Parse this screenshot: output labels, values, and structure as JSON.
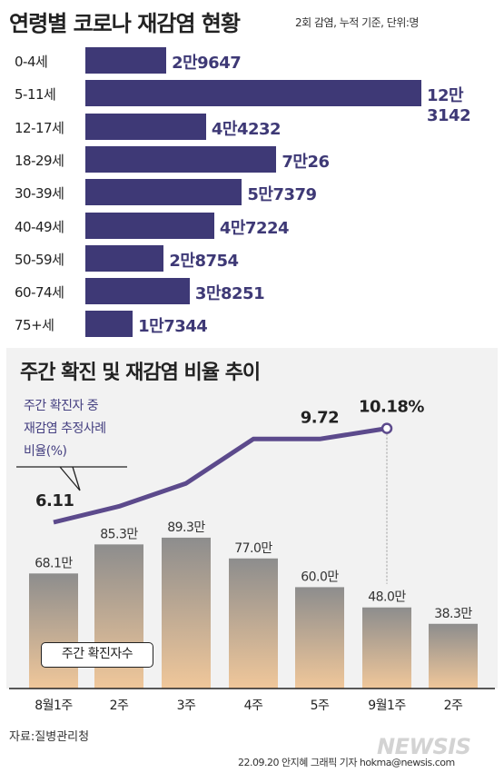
{
  "header": {
    "title": "연령별 코로나 재감염 현황",
    "note": "2회 감염, 누적 기준, 단위:명"
  },
  "age_chart": {
    "bar_color": "#3e3976",
    "items": [
      {
        "age": "0-4세",
        "value": 29647,
        "label": "2만9647"
      },
      {
        "age": "5-11세",
        "value": 123142,
        "label": "12만3142"
      },
      {
        "age": "12-17세",
        "value": 44232,
        "label": "4만4232"
      },
      {
        "age": "18-29세",
        "value": 70026,
        "label": "7만26"
      },
      {
        "age": "30-39세",
        "value": 57379,
        "label": "5만7379"
      },
      {
        "age": "40-49세",
        "value": 47224,
        "label": "4만7224"
      },
      {
        "age": "50-59세",
        "value": 28754,
        "label": "2만8754"
      },
      {
        "age": "60-74세",
        "value": 38251,
        "label": "3만8251"
      },
      {
        "age": "75+세",
        "value": 17344,
        "label": "1만7344"
      }
    ]
  },
  "weekly": {
    "title": "주간 확진 및 재감염 비율 추이",
    "annotation": [
      "주간 확진자 중",
      "재감염 추정사례",
      "비율(%)"
    ],
    "legend_label": "주간 확진자수",
    "line_color": "#5c4a8c",
    "bar_gradient": [
      "#8d8d8d",
      "#f0c79a"
    ]
  },
  "chart_data": [
    {
      "type": "bar",
      "title": "연령별 코로나 재감염 현황",
      "orientation": "horizontal",
      "unit": "명",
      "categories": [
        "0-4세",
        "5-11세",
        "12-17세",
        "18-29세",
        "30-39세",
        "40-49세",
        "50-59세",
        "60-74세",
        "75+세"
      ],
      "values": [
        29647,
        123142,
        44232,
        70026,
        57379,
        47224,
        28754,
        38251,
        17344
      ]
    },
    {
      "type": "bar",
      "title": "주간 확진 및 재감염 비율 추이",
      "categories": [
        "8월1주",
        "2주",
        "3주",
        "4주",
        "5주",
        "9월1주",
        "2주"
      ],
      "series": [
        {
          "name": "주간 확진자수",
          "values": [
            68.1,
            85.3,
            89.3,
            77.0,
            60.0,
            48.0,
            38.3
          ],
          "labels": [
            "68.1만",
            "85.3만",
            "89.3만",
            "77.0만",
            "60.0만",
            "48.0만",
            "38.3만"
          ]
        }
      ],
      "ylim": [
        0,
        100
      ]
    },
    {
      "type": "line",
      "categories": [
        "8월1주",
        "2주",
        "3주",
        "4주",
        "5주",
        "9월1주"
      ],
      "series": [
        {
          "name": "주간 확진자 중 재감염 추정사례 비율(%)",
          "values": [
            6.11,
            6.8,
            7.8,
            9.72,
            9.72,
            10.18
          ],
          "labels": [
            "6.11",
            "",
            "",
            "",
            "9.72",
            "10.18%"
          ]
        }
      ]
    }
  ],
  "footer": {
    "source": "자료:질병관리청",
    "credit": "22.09.20 안지혜 그래픽 기자 hokma@newsis.com",
    "watermark": "NEWSIS"
  }
}
